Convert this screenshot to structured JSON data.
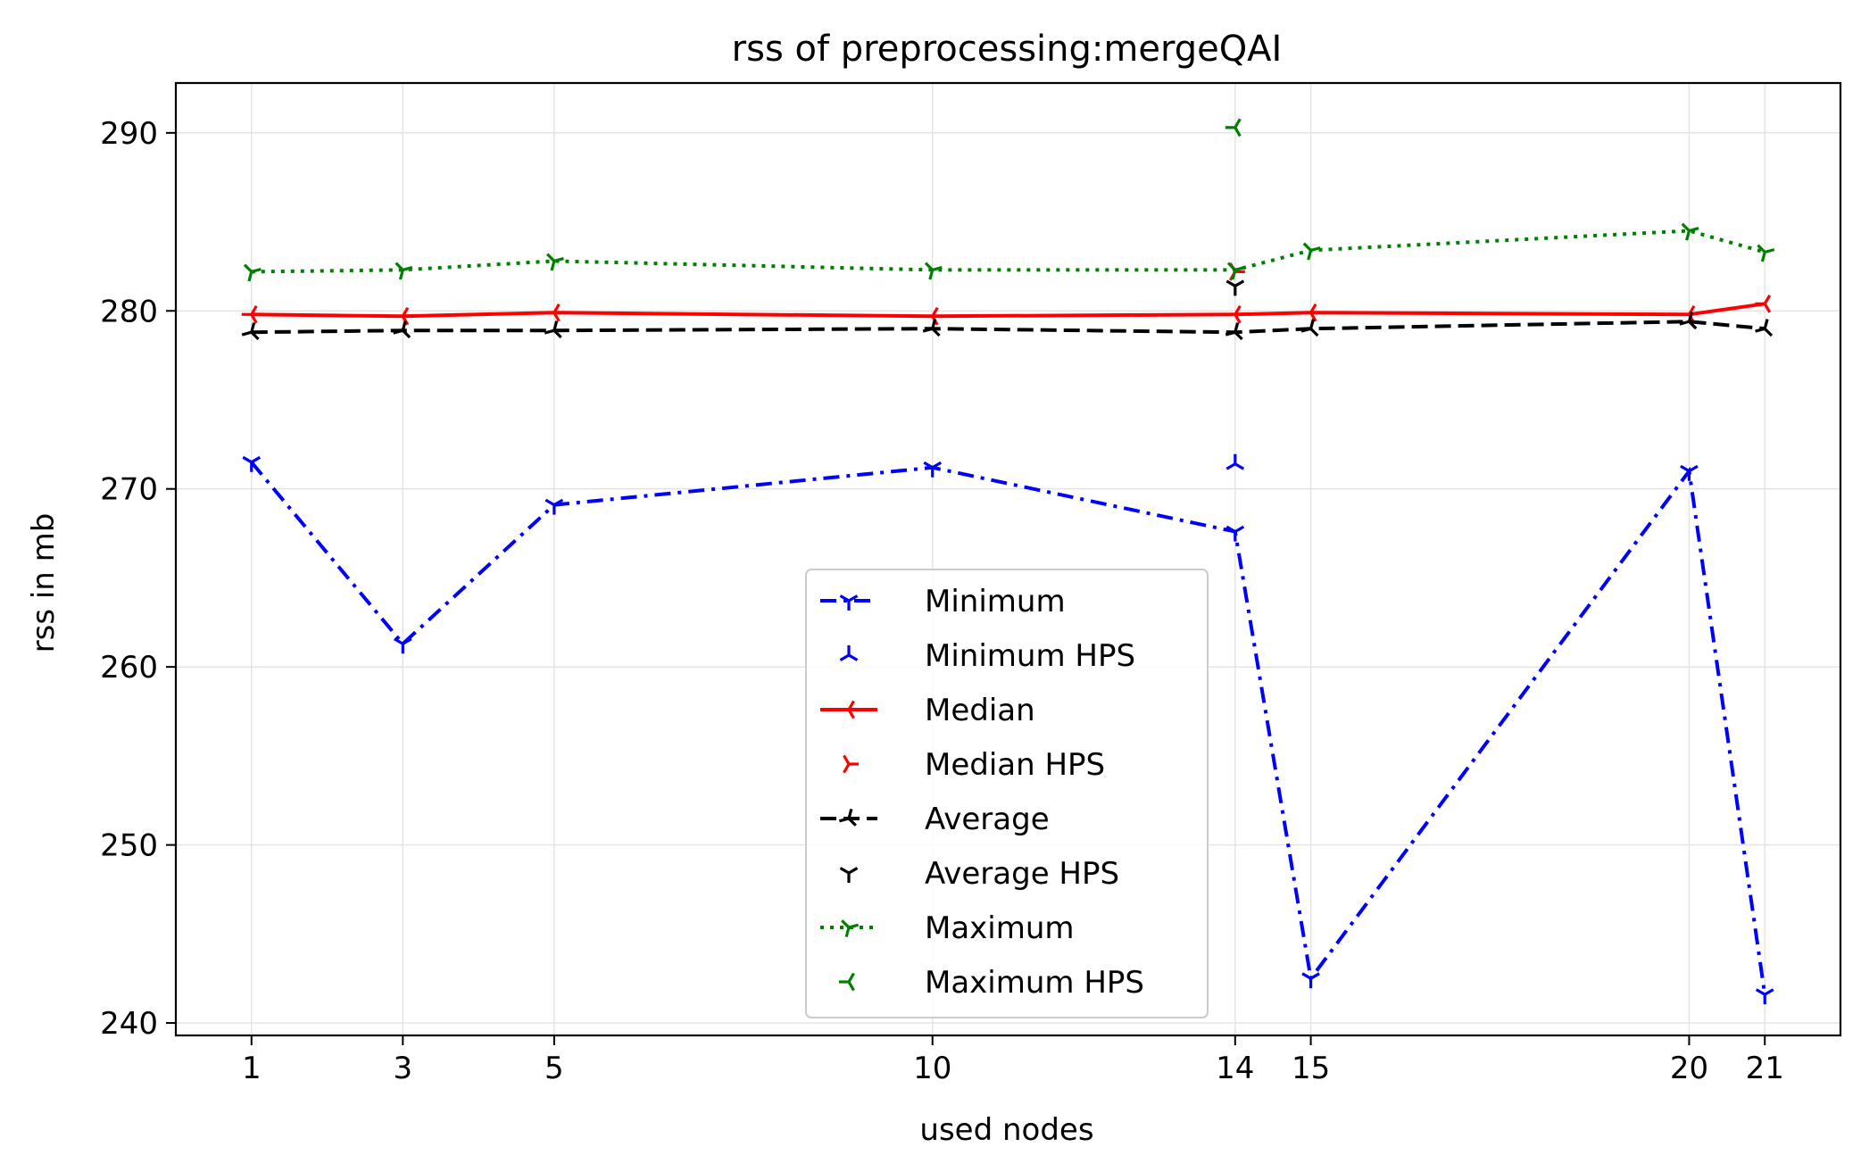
{
  "chart_data": {
    "type": "line",
    "title": "rss of preprocessing:mergeQAI",
    "xlabel": "used nodes",
    "ylabel": "rss in mb",
    "x_ticks": [
      1,
      3,
      5,
      10,
      14,
      15,
      20,
      21
    ],
    "y_ticks": [
      240,
      250,
      260,
      270,
      280,
      290
    ],
    "xlim": [
      0,
      22
    ],
    "ylim": [
      239.3,
      292.8
    ],
    "grid": true,
    "legend_position": "lower-center",
    "x": [
      1,
      3,
      5,
      10,
      14,
      15,
      20,
      21
    ],
    "series": [
      {
        "name": "Minimum",
        "color": "#0000ff",
        "dash": "dashdot",
        "marker": "tri-down",
        "values": [
          271.5,
          261.3,
          269.1,
          271.2,
          267.6,
          242.5,
          271.0,
          241.6
        ]
      },
      {
        "name": "Minimum HPS",
        "color": "#0000ff",
        "dash": "none",
        "marker": "tri-up",
        "points": [
          [
            14,
            271.4
          ]
        ]
      },
      {
        "name": "Median",
        "color": "#ff0000",
        "dash": "solid",
        "marker": "tri-left",
        "values": [
          279.8,
          279.7,
          279.9,
          279.7,
          279.8,
          279.9,
          279.8,
          280.4
        ]
      },
      {
        "name": "Median HPS",
        "color": "#ff0000",
        "dash": "none",
        "marker": "tri-right",
        "points": [
          [
            14,
            282.2
          ]
        ]
      },
      {
        "name": "Average",
        "color": "#000000",
        "dash": "dashed",
        "marker": "tri-right-down",
        "values": [
          278.8,
          278.9,
          278.9,
          279.0,
          278.8,
          279.0,
          279.4,
          279.0
        ]
      },
      {
        "name": "Average HPS",
        "color": "#000000",
        "dash": "none",
        "marker": "tri-down",
        "points": [
          [
            14,
            281.4
          ]
        ]
      },
      {
        "name": "Maximum",
        "color": "#008000",
        "dash": "dotted",
        "marker": "tri-left-up",
        "values": [
          282.2,
          282.3,
          282.8,
          282.3,
          282.3,
          283.4,
          284.5,
          283.3
        ]
      },
      {
        "name": "Maximum HPS",
        "color": "#008000",
        "dash": "none",
        "marker": "tri-left",
        "points": [
          [
            14,
            290.3
          ]
        ]
      }
    ]
  }
}
